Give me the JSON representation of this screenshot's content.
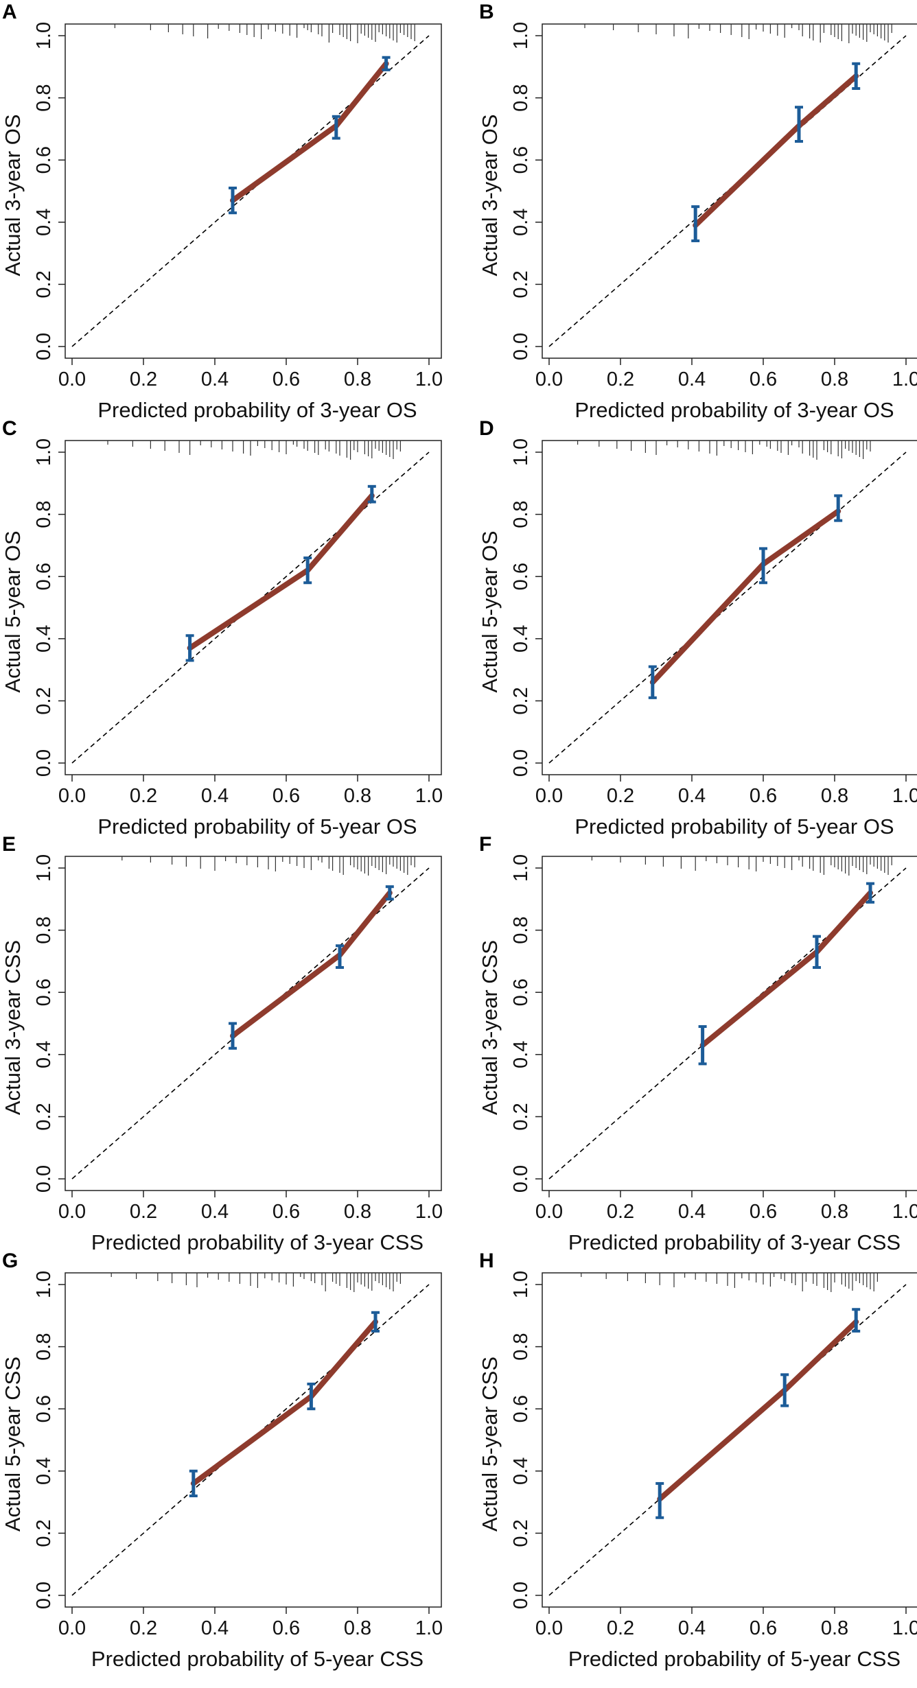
{
  "colors": {
    "curve": "#8e3b2d",
    "error_bar": "#1c5c98",
    "frame": "#222222",
    "diagonal": "#000000"
  },
  "ticks": [
    "0.0",
    "0.2",
    "0.4",
    "0.6",
    "0.8",
    "1.0"
  ],
  "chart_data": [
    {
      "panel": "A",
      "type": "line",
      "xlabel": "Predicted probability of 3-year OS",
      "ylabel": "Actual 3-year OS",
      "xlim": [
        0,
        1
      ],
      "ylim": [
        0,
        1
      ],
      "points": [
        {
          "x": 0.45,
          "y": 0.47,
          "lo": 0.43,
          "hi": 0.51
        },
        {
          "x": 0.74,
          "y": 0.71,
          "lo": 0.67,
          "hi": 0.74
        },
        {
          "x": 0.88,
          "y": 0.91,
          "lo": 0.89,
          "hi": 0.93
        }
      ],
      "rug": [
        0.12,
        0.22,
        0.27,
        0.31,
        0.34,
        0.38,
        0.41,
        0.44,
        0.47,
        0.49,
        0.51,
        0.53,
        0.55,
        0.57,
        0.59,
        0.61,
        0.63,
        0.65,
        0.66,
        0.67,
        0.69,
        0.7,
        0.72,
        0.73,
        0.75,
        0.76,
        0.77,
        0.78,
        0.8,
        0.81,
        0.82,
        0.83,
        0.84,
        0.85,
        0.86,
        0.87,
        0.88,
        0.89,
        0.9,
        0.91,
        0.92,
        0.93,
        0.94,
        0.95,
        0.96
      ]
    },
    {
      "panel": "B",
      "type": "line",
      "xlabel": "Predicted probability of 3-year OS",
      "ylabel": "Actual 3-year OS",
      "xlim": [
        0,
        1
      ],
      "ylim": [
        0,
        1
      ],
      "points": [
        {
          "x": 0.41,
          "y": 0.39,
          "lo": 0.34,
          "hi": 0.45
        },
        {
          "x": 0.7,
          "y": 0.71,
          "lo": 0.66,
          "hi": 0.77
        },
        {
          "x": 0.86,
          "y": 0.87,
          "lo": 0.83,
          "hi": 0.91
        }
      ],
      "rug": [
        0.1,
        0.18,
        0.25,
        0.3,
        0.35,
        0.39,
        0.42,
        0.45,
        0.48,
        0.51,
        0.54,
        0.56,
        0.58,
        0.6,
        0.62,
        0.64,
        0.66,
        0.68,
        0.7,
        0.71,
        0.73,
        0.74,
        0.76,
        0.77,
        0.79,
        0.8,
        0.81,
        0.82,
        0.84,
        0.85,
        0.86,
        0.87,
        0.88,
        0.89,
        0.9,
        0.91,
        0.92,
        0.93,
        0.94,
        0.95,
        0.96
      ]
    },
    {
      "panel": "C",
      "type": "line",
      "xlabel": "Predicted probability of 5-year OS",
      "ylabel": "Actual 5-year OS",
      "xlim": [
        0,
        1
      ],
      "ylim": [
        0,
        1
      ],
      "points": [
        {
          "x": 0.33,
          "y": 0.37,
          "lo": 0.33,
          "hi": 0.41
        },
        {
          "x": 0.66,
          "y": 0.62,
          "lo": 0.58,
          "hi": 0.66
        },
        {
          "x": 0.84,
          "y": 0.86,
          "lo": 0.84,
          "hi": 0.89
        }
      ],
      "rug": [
        0.1,
        0.17,
        0.22,
        0.26,
        0.3,
        0.33,
        0.36,
        0.39,
        0.42,
        0.45,
        0.48,
        0.5,
        0.52,
        0.54,
        0.56,
        0.58,
        0.6,
        0.62,
        0.63,
        0.65,
        0.66,
        0.68,
        0.69,
        0.71,
        0.72,
        0.74,
        0.75,
        0.77,
        0.78,
        0.79,
        0.8,
        0.82,
        0.83,
        0.84,
        0.85,
        0.86,
        0.87,
        0.88,
        0.89,
        0.9,
        0.91,
        0.92
      ]
    },
    {
      "panel": "D",
      "type": "line",
      "xlabel": "Predicted probability of 5-year OS",
      "ylabel": "Actual 5-year OS",
      "xlim": [
        0,
        1
      ],
      "ylim": [
        0,
        1
      ],
      "points": [
        {
          "x": 0.29,
          "y": 0.26,
          "lo": 0.21,
          "hi": 0.31
        },
        {
          "x": 0.6,
          "y": 0.64,
          "lo": 0.58,
          "hi": 0.69
        },
        {
          "x": 0.81,
          "y": 0.81,
          "lo": 0.78,
          "hi": 0.86
        }
      ],
      "rug": [
        0.08,
        0.14,
        0.19,
        0.23,
        0.27,
        0.3,
        0.33,
        0.36,
        0.39,
        0.42,
        0.45,
        0.47,
        0.49,
        0.51,
        0.53,
        0.55,
        0.57,
        0.59,
        0.61,
        0.62,
        0.64,
        0.65,
        0.67,
        0.68,
        0.7,
        0.71,
        0.73,
        0.74,
        0.75,
        0.77,
        0.78,
        0.79,
        0.81,
        0.82,
        0.83,
        0.84,
        0.85,
        0.86,
        0.87,
        0.88,
        0.89,
        0.9
      ]
    },
    {
      "panel": "E",
      "type": "line",
      "xlabel": "Predicted probability of 3-year CSS",
      "ylabel": "Actual 3-year CSS",
      "xlim": [
        0,
        1
      ],
      "ylim": [
        0,
        1
      ],
      "points": [
        {
          "x": 0.45,
          "y": 0.46,
          "lo": 0.42,
          "hi": 0.5
        },
        {
          "x": 0.75,
          "y": 0.72,
          "lo": 0.68,
          "hi": 0.75
        },
        {
          "x": 0.89,
          "y": 0.92,
          "lo": 0.9,
          "hi": 0.94
        }
      ],
      "rug": [
        0.14,
        0.22,
        0.28,
        0.32,
        0.36,
        0.4,
        0.43,
        0.46,
        0.49,
        0.52,
        0.55,
        0.57,
        0.59,
        0.61,
        0.63,
        0.65,
        0.67,
        0.69,
        0.7,
        0.72,
        0.73,
        0.75,
        0.76,
        0.78,
        0.79,
        0.8,
        0.81,
        0.82,
        0.83,
        0.84,
        0.85,
        0.86,
        0.87,
        0.88,
        0.89,
        0.9,
        0.91,
        0.92,
        0.93,
        0.94,
        0.95,
        0.96
      ]
    },
    {
      "panel": "F",
      "type": "line",
      "xlabel": "Predicted probability of 3-year CSS",
      "ylabel": "Actual 3-year CSS",
      "xlim": [
        0,
        1
      ],
      "ylim": [
        0,
        1
      ],
      "points": [
        {
          "x": 0.43,
          "y": 0.43,
          "lo": 0.37,
          "hi": 0.49
        },
        {
          "x": 0.75,
          "y": 0.73,
          "lo": 0.68,
          "hi": 0.78
        },
        {
          "x": 0.9,
          "y": 0.92,
          "lo": 0.89,
          "hi": 0.95
        }
      ],
      "rug": [
        0.12,
        0.2,
        0.27,
        0.32,
        0.37,
        0.41,
        0.44,
        0.47,
        0.5,
        0.53,
        0.56,
        0.58,
        0.6,
        0.62,
        0.64,
        0.66,
        0.68,
        0.7,
        0.71,
        0.73,
        0.74,
        0.76,
        0.77,
        0.79,
        0.8,
        0.81,
        0.82,
        0.83,
        0.84,
        0.85,
        0.86,
        0.87,
        0.88,
        0.89,
        0.9,
        0.91,
        0.92,
        0.93,
        0.94,
        0.95,
        0.96
      ]
    },
    {
      "panel": "G",
      "type": "line",
      "xlabel": "Predicted probability of 5-year CSS",
      "ylabel": "Actual 5-year CSS",
      "xlim": [
        0,
        1
      ],
      "ylim": [
        0,
        1
      ],
      "points": [
        {
          "x": 0.34,
          "y": 0.36,
          "lo": 0.32,
          "hi": 0.4
        },
        {
          "x": 0.67,
          "y": 0.64,
          "lo": 0.6,
          "hi": 0.68
        },
        {
          "x": 0.85,
          "y": 0.88,
          "lo": 0.85,
          "hi": 0.91
        }
      ],
      "rug": [
        0.11,
        0.18,
        0.24,
        0.28,
        0.32,
        0.35,
        0.38,
        0.41,
        0.44,
        0.47,
        0.5,
        0.52,
        0.54,
        0.56,
        0.58,
        0.6,
        0.62,
        0.64,
        0.65,
        0.67,
        0.68,
        0.7,
        0.71,
        0.73,
        0.74,
        0.75,
        0.77,
        0.78,
        0.79,
        0.8,
        0.81,
        0.82,
        0.83,
        0.84,
        0.85,
        0.86,
        0.87,
        0.88,
        0.89,
        0.9,
        0.91,
        0.92
      ]
    },
    {
      "panel": "H",
      "type": "line",
      "xlabel": "Predicted probability of 5-year CSS",
      "ylabel": "Actual 5-year CSS",
      "xlim": [
        0,
        1
      ],
      "ylim": [
        0,
        1
      ],
      "points": [
        {
          "x": 0.31,
          "y": 0.31,
          "lo": 0.25,
          "hi": 0.36
        },
        {
          "x": 0.66,
          "y": 0.66,
          "lo": 0.61,
          "hi": 0.71
        },
        {
          "x": 0.86,
          "y": 0.88,
          "lo": 0.85,
          "hi": 0.92
        }
      ],
      "rug": [
        0.09,
        0.16,
        0.22,
        0.27,
        0.31,
        0.35,
        0.38,
        0.41,
        0.44,
        0.47,
        0.5,
        0.52,
        0.54,
        0.56,
        0.58,
        0.6,
        0.62,
        0.63,
        0.65,
        0.66,
        0.68,
        0.69,
        0.71,
        0.72,
        0.74,
        0.75,
        0.77,
        0.78,
        0.79,
        0.8,
        0.82,
        0.83,
        0.84,
        0.85,
        0.86,
        0.87,
        0.88,
        0.89,
        0.9,
        0.91,
        0.92
      ]
    }
  ]
}
